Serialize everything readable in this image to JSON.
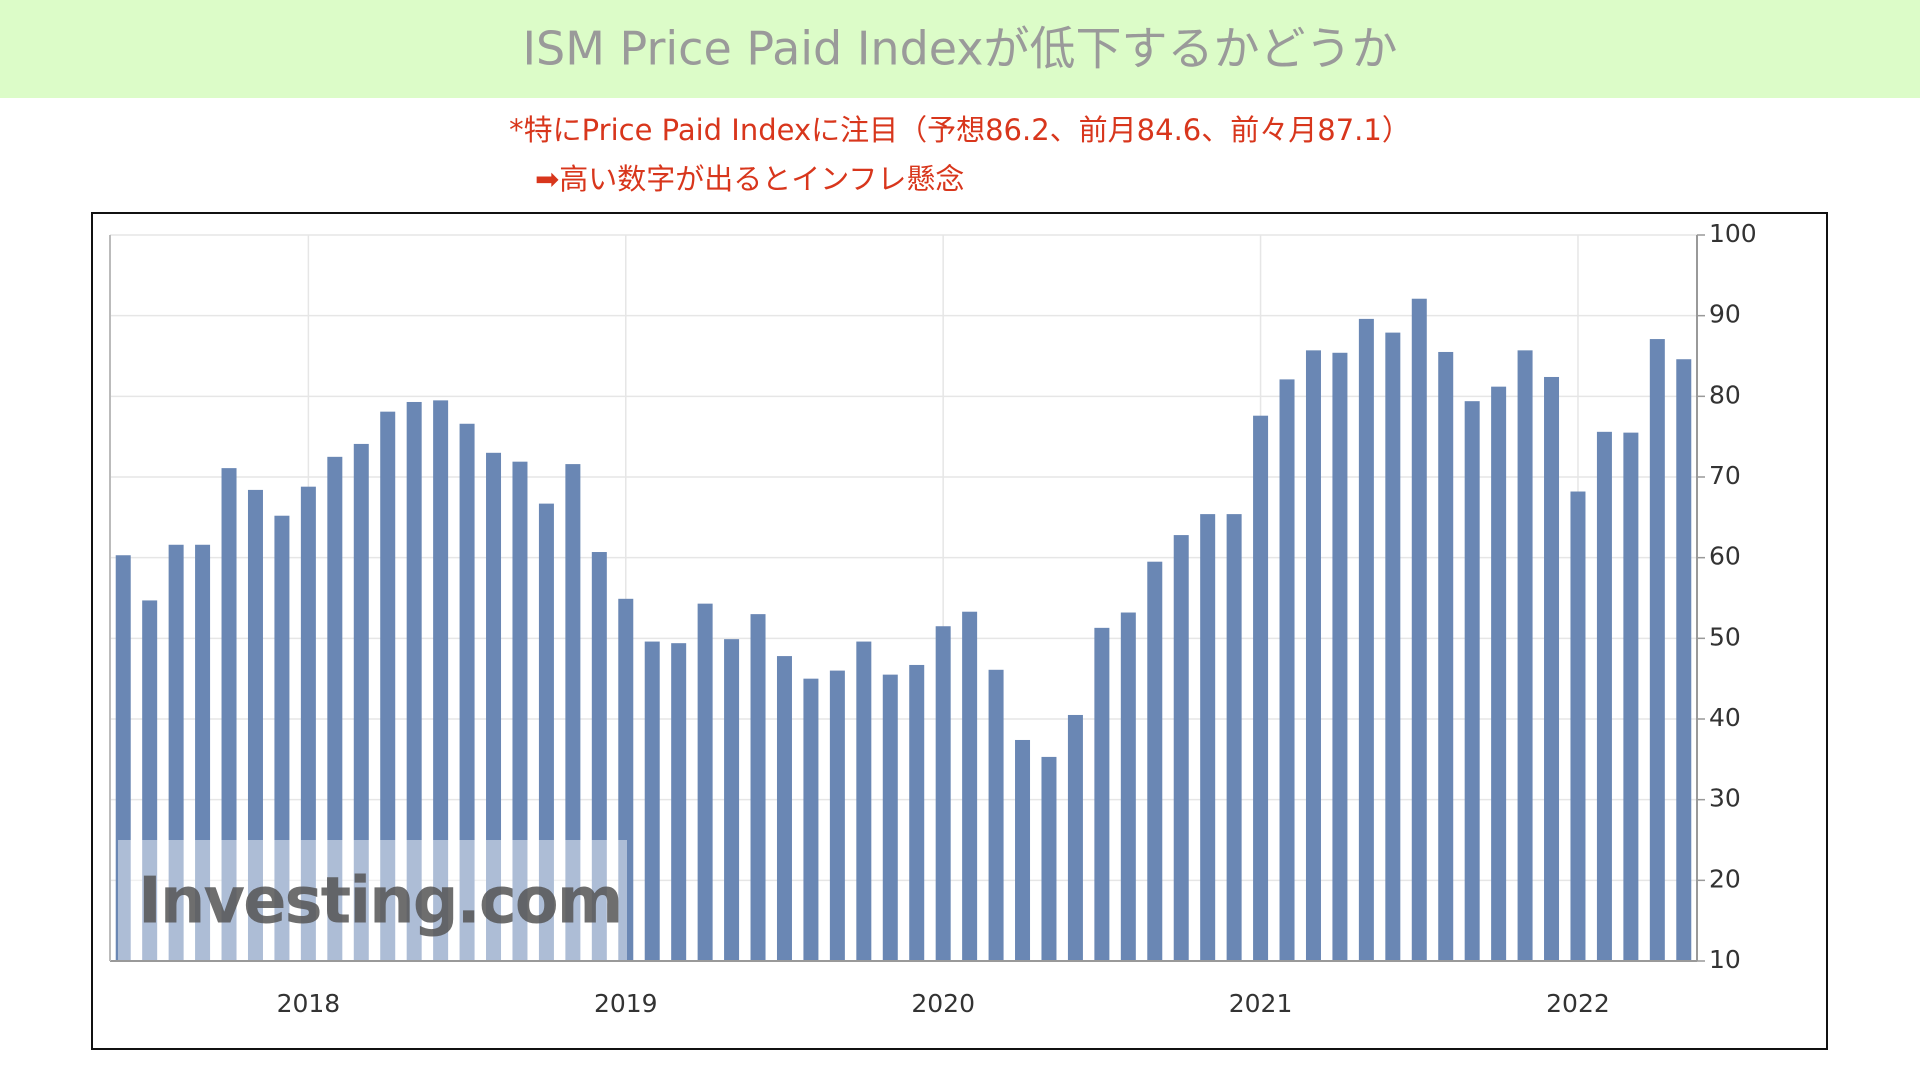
{
  "title": "ISM Price Paid Indexが低下するかどうか",
  "notes": [
    "*特にPrice Paid Indexに注目（予想86.2、前月84.6、前々月87.1）",
    "➡高い数字が出るとインフレ懸念"
  ],
  "chart_data": {
    "type": "bar",
    "color": "#6a87b4",
    "watermark": "Investing.com",
    "categories": [
      null,
      null,
      null,
      null,
      null,
      null,
      null,
      "2018",
      null,
      null,
      null,
      null,
      null,
      null,
      null,
      null,
      null,
      null,
      null,
      "2019",
      null,
      null,
      null,
      null,
      null,
      null,
      null,
      null,
      null,
      null,
      null,
      "2020",
      null,
      null,
      null,
      null,
      null,
      null,
      null,
      null,
      null,
      null,
      null,
      "2021",
      null,
      null,
      null,
      null,
      null,
      null,
      null,
      null,
      null,
      null,
      null,
      "2022",
      null,
      null,
      null,
      null
    ],
    "values": [
      60.3,
      54.7,
      61.6,
      61.6,
      71.1,
      68.4,
      65.2,
      68.8,
      72.5,
      74.1,
      78.1,
      79.3,
      79.5,
      76.6,
      73.0,
      71.9,
      66.7,
      71.6,
      60.7,
      54.9,
      49.6,
      49.4,
      54.3,
      49.9,
      53.0,
      47.8,
      45.0,
      46.0,
      49.6,
      45.5,
      46.7,
      51.5,
      53.3,
      46.1,
      37.4,
      35.3,
      40.5,
      51.3,
      53.2,
      59.5,
      62.8,
      65.4,
      65.4,
      77.6,
      82.1,
      85.7,
      85.4,
      89.6,
      87.9,
      92.1,
      85.5,
      79.4,
      81.2,
      85.7,
      82.4,
      68.2,
      75.6,
      75.5,
      87.1,
      84.6
    ],
    "ylim": [
      10,
      100
    ],
    "yticks": [
      10,
      20,
      30,
      40,
      50,
      60,
      70,
      80,
      90,
      100
    ],
    "grid": true,
    "yaxis_side": "right"
  }
}
